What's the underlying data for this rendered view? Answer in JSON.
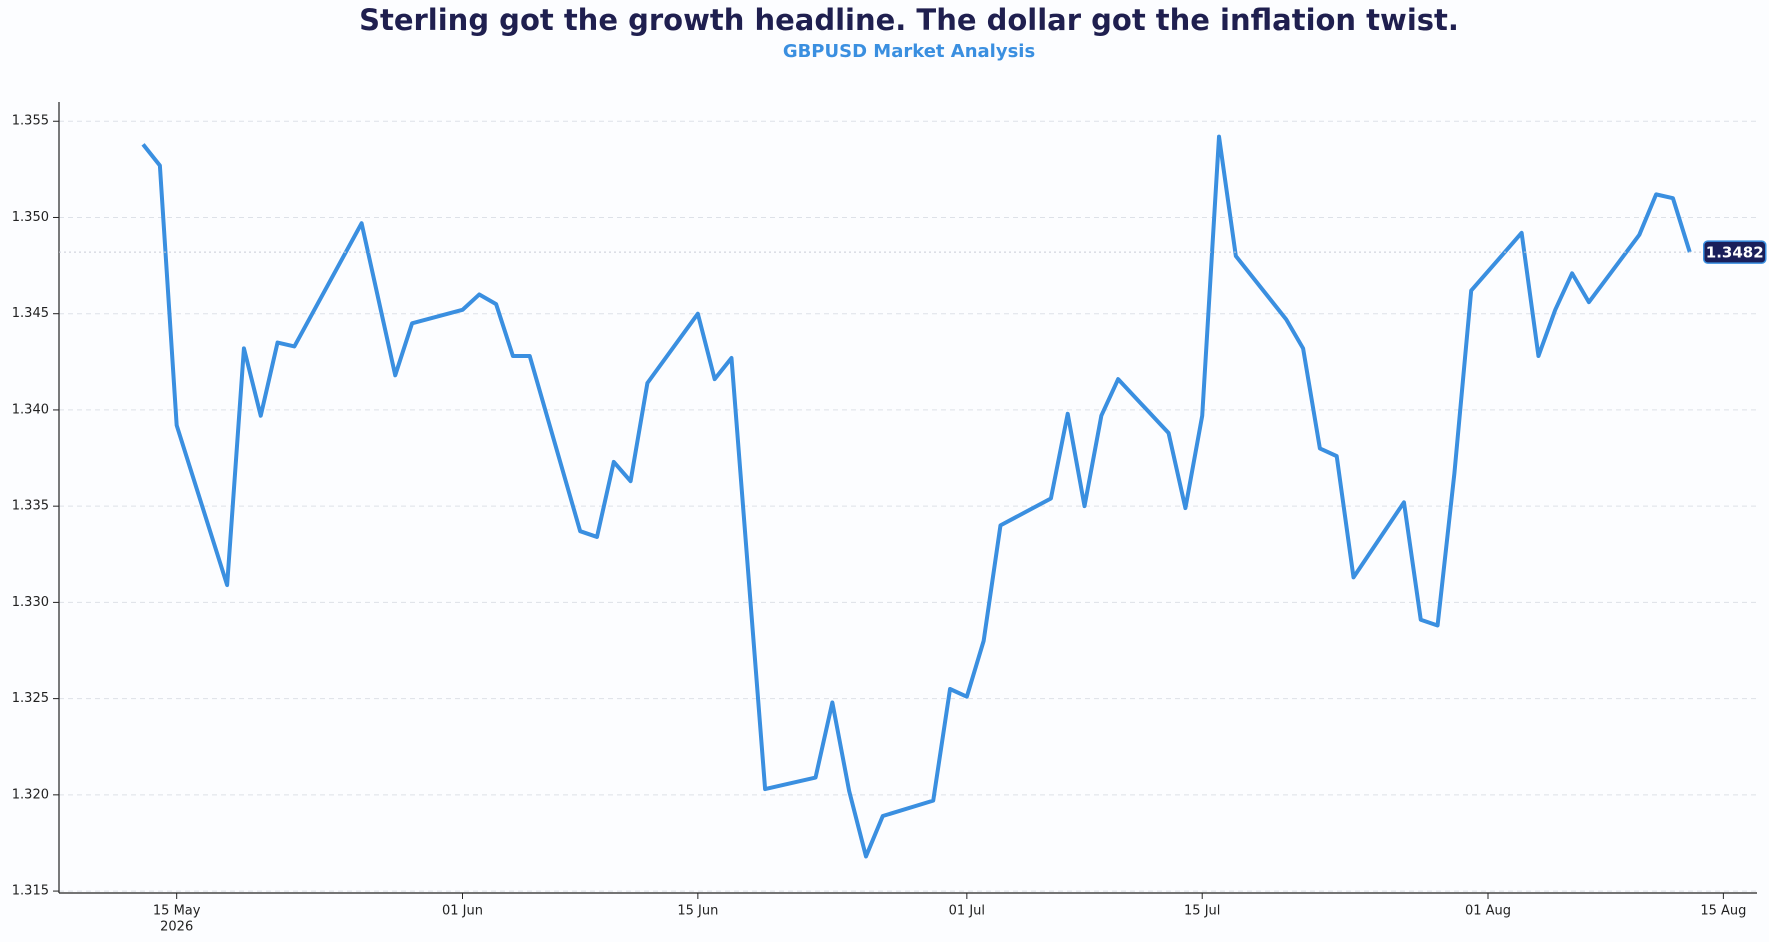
{
  "chart_data": {
    "type": "line",
    "title": "Sterling got the growth headline. The dollar got the inflation twist.",
    "subtitle": "GBPUSD Market Analysis",
    "x": [
      "2026-05-13",
      "2026-05-14",
      "2026-05-15",
      "2026-05-18",
      "2026-05-19",
      "2026-05-20",
      "2026-05-21",
      "2026-05-22",
      "2026-05-26",
      "2026-05-28",
      "2026-05-29",
      "2026-06-01",
      "2026-06-02",
      "2026-06-03",
      "2026-06-04",
      "2026-06-05",
      "2026-06-08",
      "2026-06-09",
      "2026-06-10",
      "2026-06-11",
      "2026-06-12",
      "2026-06-15",
      "2026-06-16",
      "2026-06-17",
      "2026-06-19",
      "2026-06-22",
      "2026-06-23",
      "2026-06-24",
      "2026-06-25",
      "2026-06-26",
      "2026-06-29",
      "2026-06-30",
      "2026-07-01",
      "2026-07-02",
      "2026-07-03",
      "2026-07-06",
      "2026-07-07",
      "2026-07-08",
      "2026-07-09",
      "2026-07-10",
      "2026-07-13",
      "2026-07-14",
      "2026-07-15",
      "2026-07-16",
      "2026-07-17",
      "2026-07-20",
      "2026-07-21",
      "2026-07-22",
      "2026-07-23",
      "2026-07-24",
      "2026-07-27",
      "2026-07-28",
      "2026-07-29",
      "2026-07-30",
      "2026-07-31",
      "2026-08-03",
      "2026-08-04",
      "2026-08-05",
      "2026-08-06",
      "2026-08-07",
      "2026-08-10",
      "2026-08-11",
      "2026-08-12",
      "2026-08-13"
    ],
    "series": [
      {
        "name": "GBPUSD",
        "color": "#3a8fe0",
        "values": [
          1.3538,
          1.3527,
          1.3392,
          1.3309,
          1.3432,
          1.3397,
          1.3435,
          1.3433,
          1.3497,
          1.3418,
          1.3445,
          1.3452,
          1.346,
          1.3455,
          1.3428,
          1.3428,
          1.3337,
          1.3334,
          1.3373,
          1.3363,
          1.3414,
          1.345,
          1.3416,
          1.3427,
          1.3203,
          1.3209,
          1.3248,
          1.3202,
          1.3168,
          1.3189,
          1.3197,
          1.3255,
          1.3251,
          1.328,
          1.334,
          1.3354,
          1.3398,
          1.335,
          1.3397,
          1.3416,
          1.3388,
          1.3349,
          1.3397,
          1.3542,
          1.348,
          1.3447,
          1.3432,
          1.338,
          1.3376,
          1.3313,
          1.3352,
          1.3291,
          1.3288,
          1.3367,
          1.3462,
          1.3492,
          1.3428,
          1.3452,
          1.3471,
          1.3456,
          1.3491,
          1.3512,
          1.351,
          1.3482
        ]
      }
    ],
    "xlim": [
      "2026-05-08",
      "2026-08-17"
    ],
    "xticks": [
      {
        "value": "2026-05-15",
        "label": "15 May"
      },
      {
        "value": "2026-06-01",
        "label": "01 Jun"
      },
      {
        "value": "2026-06-15",
        "label": "15 Jun"
      },
      {
        "value": "2026-07-01",
        "label": "01 Jul"
      },
      {
        "value": "2026-07-15",
        "label": "15 Jul"
      },
      {
        "value": "2026-08-01",
        "label": "01 Aug"
      },
      {
        "value": "2026-08-15",
        "label": "15 Aug"
      }
    ],
    "x_year_label": "2026",
    "ylim": [
      1.3149,
      1.356
    ],
    "yticks": [
      1.315,
      {
        "value": 1.32,
        "label": "1.320"
      },
      1.325,
      {
        "value": 1.33,
        "label": "1.330"
      },
      1.335,
      {
        "value": 1.34,
        "label": "1.340"
      },
      1.345,
      {
        "value": 1.35,
        "label": "1.350"
      },
      1.355
    ],
    "grid": true
  }
}
